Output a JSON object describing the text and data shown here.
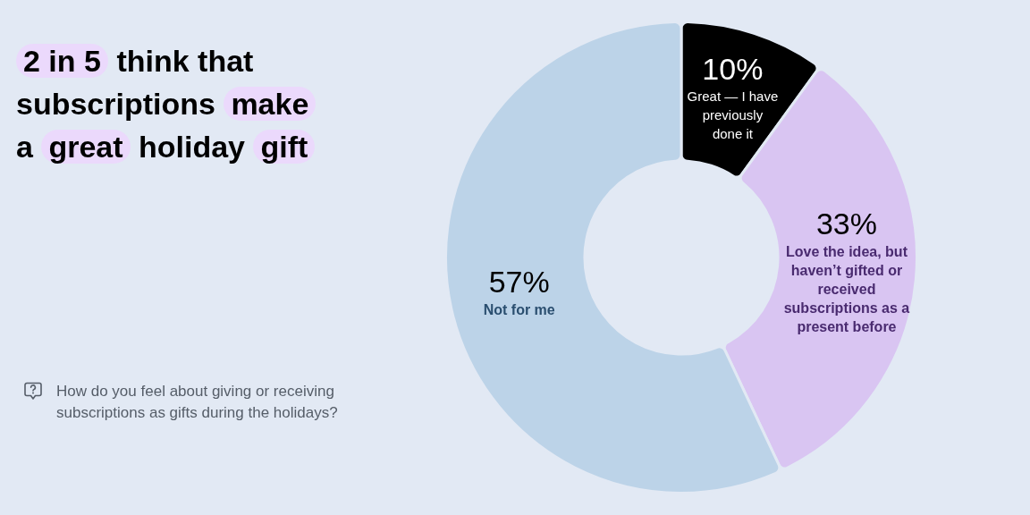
{
  "chart_data": {
    "type": "donut",
    "title": "2 in 5 think that subscriptions make a great holiday gift",
    "categories": [
      "Great — I have previously done it",
      "Love the idea, but haven’t gifted or received subscriptions as a present before",
      "Not for me"
    ],
    "values": [
      10,
      33,
      57
    ],
    "colors": [
      "#000000",
      "#d9c5f2",
      "#bcd3e8"
    ],
    "value_labels": [
      "10%",
      "33%",
      "57%"
    ],
    "annotations": [
      "How do you feel about giving or receiving subscriptions as gifts during the holidays?"
    ]
  }
}
